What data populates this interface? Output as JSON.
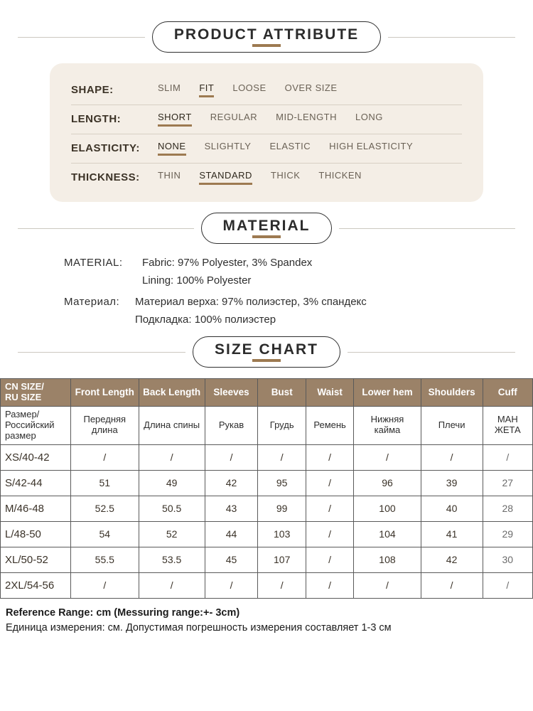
{
  "colors": {
    "accent": "#9d7a51",
    "card_bg": "#f4eee6",
    "header_bg": "#9b8268",
    "border": "#5a5a5a",
    "hr": "#ccc8c0"
  },
  "sections": {
    "attribute": {
      "title": "PRODUCT ATTRIBUTE"
    },
    "material": {
      "title": "MATERIAL"
    },
    "size": {
      "title": "SIZE CHART"
    }
  },
  "attributes": [
    {
      "label": "SHAPE:",
      "options": [
        "SLIM",
        "FIT",
        "LOOSE",
        "OVER SIZE"
      ],
      "selected": 1
    },
    {
      "label": "LENGTH:",
      "options": [
        "SHORT",
        "REGULAR",
        "MID-LENGTH",
        "LONG"
      ],
      "selected": 0
    },
    {
      "label": "ELASTICITY:",
      "options": [
        "NONE",
        "SLIGHTLY",
        "ELASTIC",
        "HIGH ELASTICITY"
      ],
      "selected": 0
    },
    {
      "label": "THICKNESS:",
      "options": [
        "THIN",
        "STANDARD",
        "THICK",
        "THICKEN"
      ],
      "selected": 1
    }
  ],
  "material": {
    "en_label": "MATERIAL:",
    "en_line1": "Fabric: 97% Polyester, 3% Spandex",
    "en_line2": "Lining: 100% Polyester",
    "ru_label": "Материал:",
    "ru_line1": "Материал верха: 97% полиэстер, 3% спандекс",
    "ru_line2": "Подкладка: 100% полиэстер"
  },
  "size_chart": {
    "header_en": [
      "CN SIZE/\nRU SIZE",
      "Front Length",
      "Back Length",
      "Sleeves",
      "Bust",
      "Waist",
      "Lower hem",
      "Shoulders",
      "Cuff"
    ],
    "header_ru": [
      "Размер/\nРоссийский размер",
      "Передняя длина",
      "Длина спины",
      "Рукав",
      "Грудь",
      "Ремень",
      "Нижняя кайма",
      "Плечи",
      "МАН\nЖЕТА"
    ],
    "rows": [
      [
        "XS/40-42",
        "/",
        "/",
        "/",
        "/",
        "/",
        "/",
        "/",
        "/"
      ],
      [
        "S/42-44",
        "51",
        "49",
        "42",
        "95",
        "/",
        "96",
        "39",
        "27"
      ],
      [
        "M/46-48",
        "52.5",
        "50.5",
        "43",
        "99",
        "/",
        "100",
        "40",
        "28"
      ],
      [
        "L/48-50",
        "54",
        "52",
        "44",
        "103",
        "/",
        "104",
        "41",
        "29"
      ],
      [
        "XL/50-52",
        "55.5",
        "53.5",
        "45",
        "107",
        "/",
        "108",
        "42",
        "30"
      ],
      [
        "2XL/54-56",
        "/",
        "/",
        "/",
        "/",
        "/",
        "/",
        "/",
        "/"
      ]
    ]
  },
  "footnotes": {
    "en": "Reference Range: cm (Messuring range:+- 3cm)",
    "ru": "Единица измерения: см. Допустимая погрешность измерения составляет 1-3 см"
  }
}
